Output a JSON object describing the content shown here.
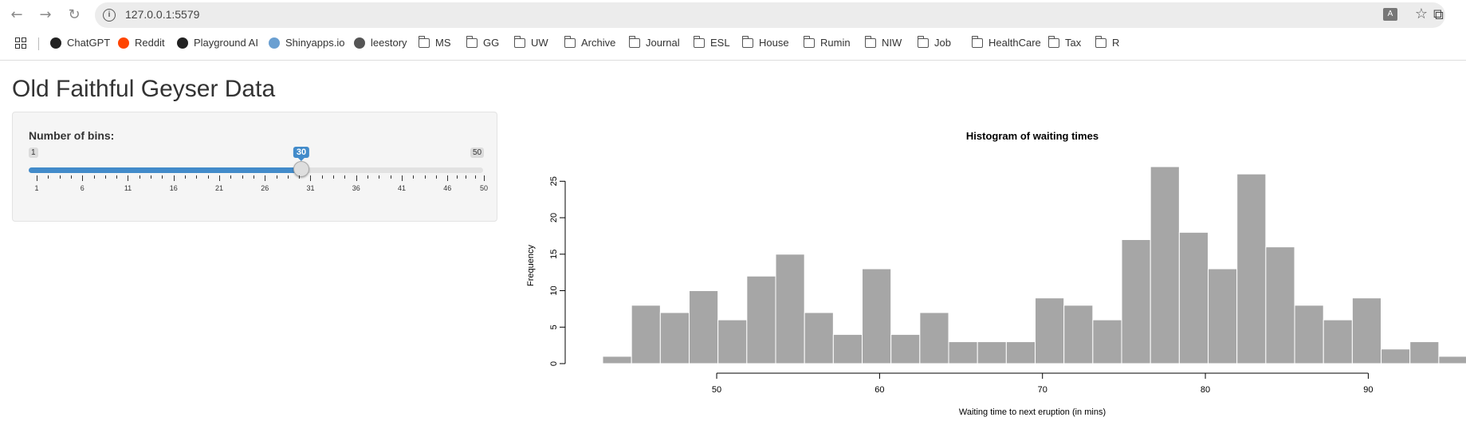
{
  "browser": {
    "url": "127.0.0.1:5579",
    "bookmarks": [
      {
        "label": "ChatGPT",
        "icon": "chatgpt-icon"
      },
      {
        "label": "Reddit",
        "icon": "reddit-icon"
      },
      {
        "label": "Playground AI",
        "icon": "playground-icon"
      },
      {
        "label": "Shinyapps.io",
        "icon": "shinyapps-icon"
      },
      {
        "label": "leestory",
        "icon": "leestory-icon"
      },
      {
        "label": "MS",
        "icon": "folder-icon"
      },
      {
        "label": "GG",
        "icon": "folder-icon"
      },
      {
        "label": "UW",
        "icon": "folder-icon"
      },
      {
        "label": "Archive",
        "icon": "folder-icon"
      },
      {
        "label": "Journal",
        "icon": "folder-icon"
      },
      {
        "label": "ESL",
        "icon": "folder-icon"
      },
      {
        "label": "House",
        "icon": "folder-icon"
      },
      {
        "label": "Rumin",
        "icon": "folder-icon"
      },
      {
        "label": "NIW",
        "icon": "folder-icon"
      },
      {
        "label": "Job",
        "icon": "folder-icon"
      },
      {
        "label": "HealthCare",
        "icon": "folder-icon"
      },
      {
        "label": "Tax",
        "icon": "folder-icon"
      },
      {
        "label": "R",
        "icon": "folder-icon"
      }
    ]
  },
  "app": {
    "title": "Old Faithful Geyser Data",
    "slider": {
      "label": "Number of bins:",
      "min": 1,
      "max": 50,
      "value": 30,
      "min_label": "1",
      "max_label": "50",
      "value_label": "30",
      "tick_labels": [
        "1",
        "6",
        "11",
        "16",
        "21",
        "26",
        "31",
        "36",
        "41",
        "46",
        "50"
      ],
      "accent": "#428bca"
    }
  },
  "chart_data": {
    "type": "bar",
    "title": "Histogram of waiting times",
    "xlabel": "Waiting time to next eruption (in mins)",
    "ylabel": "Frequency",
    "bin_start": 43.0,
    "bin_width": 1.77,
    "values": [
      1,
      8,
      7,
      10,
      6,
      12,
      15,
      7,
      4,
      13,
      4,
      7,
      3,
      3,
      3,
      9,
      8,
      6,
      17,
      27,
      18,
      13,
      26,
      16,
      8,
      6,
      9,
      2,
      3,
      1
    ],
    "xlim": [
      43,
      96
    ],
    "ylim": [
      0,
      27
    ],
    "x_ticks": [
      50,
      60,
      70,
      80,
      90
    ],
    "y_ticks": [
      0,
      5,
      10,
      15,
      20,
      25
    ],
    "bar_color": "#a6a6a6",
    "bar_border": "#ffffff"
  }
}
